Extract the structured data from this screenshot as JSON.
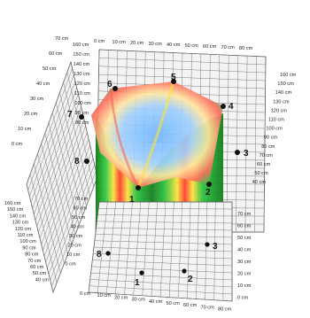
{
  "colors": {
    "green_dark": "#0a7a12",
    "green": "#25c23a",
    "red": "#ff3a2a",
    "yellow": "#ffe23a",
    "blue": "#6fb6ff",
    "grid_line": "#6f6f6f",
    "grid_fill": "#f3f3f3"
  },
  "top_axis": [
    "0 cm",
    "10 cm",
    "20 cm",
    "30 cm",
    "40 cm",
    "50 cm",
    "60 cm",
    "70 cm",
    "80 cm"
  ],
  "bottom_axis": [
    "0 cm",
    "10 cm",
    "20 cm",
    "30 cm",
    "40 cm",
    "50 cm",
    "60 cm",
    "70 cm",
    "80 cm"
  ],
  "right_upper_axis": [
    "160 cm",
    "150 cm",
    "140 cm",
    "130 cm",
    "120 cm",
    "110 cm",
    "100 cm",
    "90 cm",
    "80 cm",
    "70 cm",
    "60 cm",
    "50 cm",
    "40 cm"
  ],
  "right_lower_axis": [
    "70 cm",
    "60 cm",
    "50 cm",
    "40 cm",
    "30 cm",
    "20 cm",
    "10 cm",
    "0 cm"
  ],
  "left_upper_axis": [
    "70 cm",
    "60 cm",
    "50 cm",
    "40 cm",
    "30 cm",
    "20 cm",
    "10 cm",
    "0 cm"
  ],
  "left_lower_axis": [
    "160 cm",
    "150 cm",
    "140 cm",
    "130 cm",
    "120 cm",
    "110 cm",
    "100 cm",
    "90 cm",
    "80 cm",
    "70 cm",
    "60 cm",
    "50 cm",
    "40 cm"
  ],
  "inner_back_axis": [
    "160 cm",
    "150 cm",
    "140 cm",
    "130 cm",
    "120 cm",
    "110 cm",
    "100 cm",
    "90 cm",
    "80 cm"
  ],
  "inner_front_axis": [
    "70 cm",
    "60 cm",
    "50 cm",
    "40 cm",
    "30 cm",
    "20 cm",
    "10 cm",
    "0 cm"
  ],
  "vertex_labels_top": [
    "1",
    "2",
    "3",
    "4",
    "5",
    "6",
    "7",
    "8"
  ],
  "vertex_labels_bottom": [
    "1",
    "2",
    "3",
    "8"
  ]
}
